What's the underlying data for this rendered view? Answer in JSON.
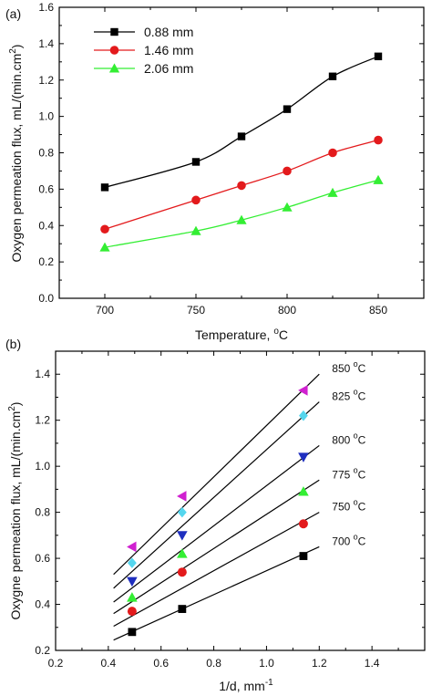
{
  "chart_data": [
    {
      "type": "line",
      "panel_label": "(a)",
      "title": "",
      "xlabel": "Temperature, °C",
      "ylabel": "Oxygen permeation flux, mL/(min.cm²)",
      "xlim": [
        675,
        875
      ],
      "ylim": [
        0,
        1.6
      ],
      "xticks": [
        "700",
        "750",
        "800",
        "850"
      ],
      "yticks": [
        "0.0",
        "0.2",
        "0.4",
        "0.6",
        "0.8",
        "1.0",
        "1.2",
        "1.4",
        "1.6"
      ],
      "grid": false,
      "legend_position": "top-left",
      "x": [
        700,
        750,
        775,
        800,
        825,
        850
      ],
      "series": [
        {
          "name": "0.88 mm",
          "marker": "square",
          "color": "#000000",
          "values": [
            0.61,
            0.75,
            0.89,
            1.04,
            1.22,
            1.33
          ]
        },
        {
          "name": "1.46 mm",
          "marker": "circle",
          "color": "#e31a1c",
          "values": [
            0.38,
            0.54,
            0.62,
            0.7,
            0.8,
            0.87
          ]
        },
        {
          "name": "2.06 mm",
          "marker": "triangle-up",
          "color": "#33ee33",
          "values": [
            0.28,
            0.37,
            0.43,
            0.5,
            0.58,
            0.65
          ]
        }
      ]
    },
    {
      "type": "scatter",
      "panel_label": "(b)",
      "title": "",
      "xlabel": "1/d, mm⁻¹",
      "ylabel": "Oxygne permeation flux, mL/(min.cm²)",
      "xlim": [
        0.2,
        1.6
      ],
      "ylim": [
        0.2,
        1.5
      ],
      "xticks": [
        "0.2",
        "0.4",
        "0.6",
        "0.8",
        "1.0",
        "1.2",
        "1.4"
      ],
      "yticks": [
        "0.2",
        "0.4",
        "0.6",
        "0.8",
        "1.0",
        "1.2",
        "1.4"
      ],
      "grid": false,
      "x": [
        0.49,
        0.68,
        1.14
      ],
      "series": [
        {
          "name": "700 °C",
          "marker": "square",
          "color": "#000000",
          "values": [
            0.28,
            0.38,
            0.61
          ],
          "fit": [
            [
              0.42,
              0.245
            ],
            [
              1.2,
              0.65
            ]
          ]
        },
        {
          "name": "750 °C",
          "marker": "circle",
          "color": "#e31a1c",
          "values": [
            0.37,
            0.54,
            0.75
          ],
          "fit": [
            [
              0.42,
              0.305
            ],
            [
              1.2,
              0.8
            ]
          ]
        },
        {
          "name": "775 °C",
          "marker": "triangle-up",
          "color": "#33ee33",
          "values": [
            0.43,
            0.62,
            0.89
          ],
          "fit": [
            [
              0.42,
              0.36
            ],
            [
              1.2,
              0.94
            ]
          ]
        },
        {
          "name": "800 °C",
          "marker": "triangle-down",
          "color": "#1f2fbf",
          "values": [
            0.5,
            0.7,
            1.04
          ],
          "fit": [
            [
              0.42,
              0.41
            ],
            [
              1.2,
              1.09
            ]
          ]
        },
        {
          "name": "825 °C",
          "marker": "diamond",
          "color": "#55d6ee",
          "values": [
            0.58,
            0.8,
            1.22
          ],
          "fit": [
            [
              0.42,
              0.47
            ],
            [
              1.2,
              1.28
            ]
          ]
        },
        {
          "name": "850 °C",
          "marker": "triangle-left",
          "color": "#d020d0",
          "values": [
            0.65,
            0.87,
            1.33
          ],
          "fit": [
            [
              0.42,
              0.53
            ],
            [
              1.2,
              1.4
            ]
          ]
        }
      ]
    }
  ]
}
